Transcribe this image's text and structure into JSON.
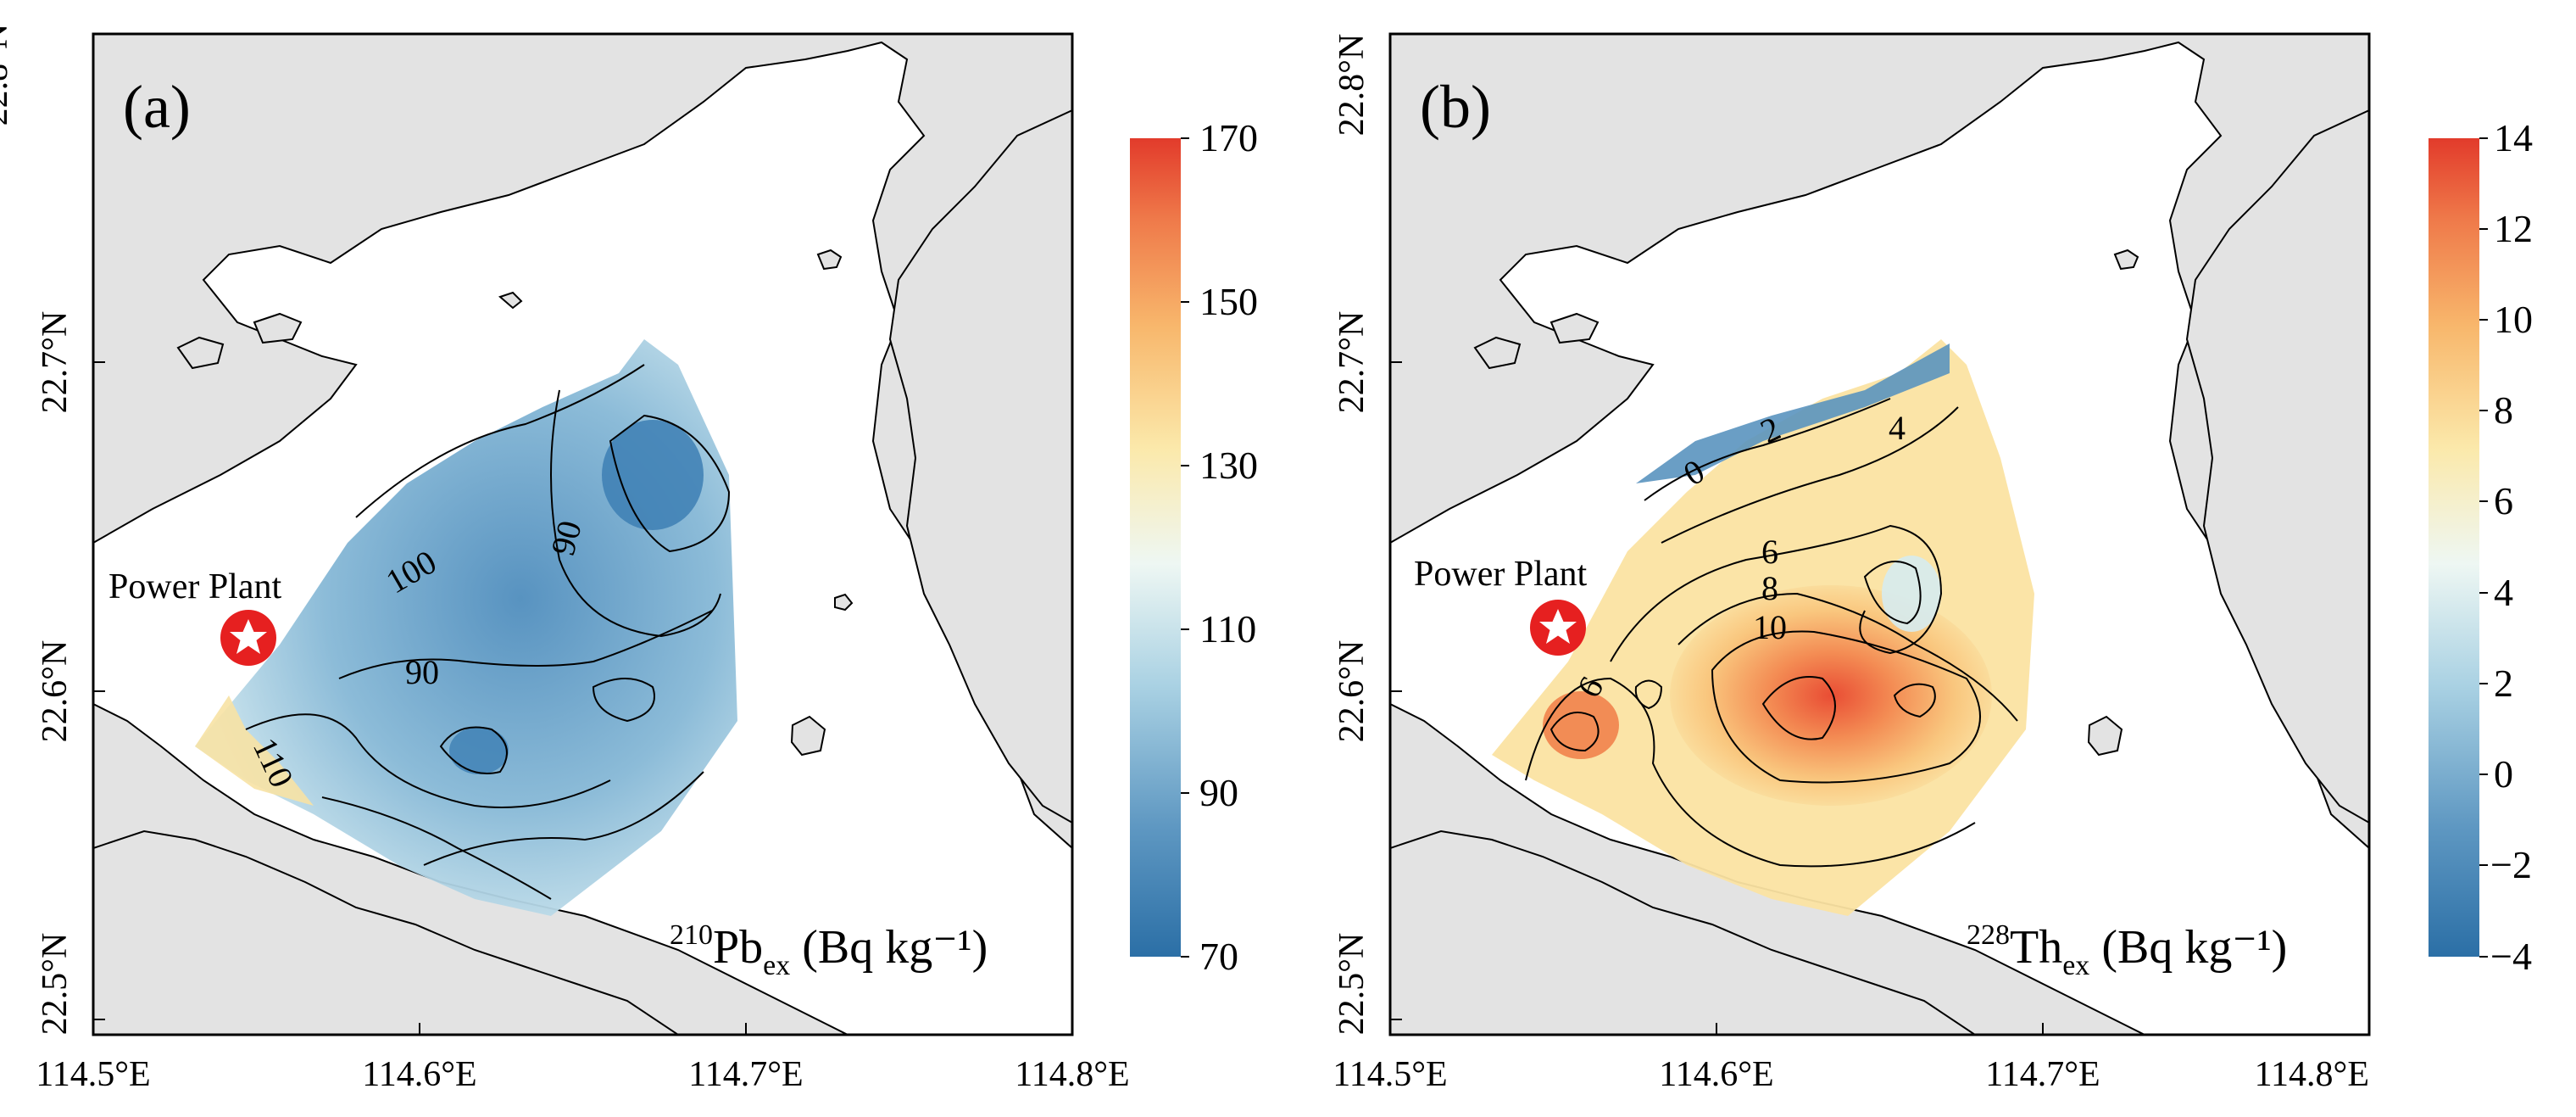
{
  "panels": [
    {
      "tag": "(a)",
      "site_label": "Power Plant",
      "var_main": "210",
      "var_sym": "Pb",
      "var_sub": "ex",
      "var_unit": "(Bq kg⁻¹)",
      "colorbar_ticks": [
        "170",
        "150",
        "130",
        "110",
        "90",
        "70"
      ],
      "contour_labels": [
        "100",
        "90",
        "90",
        "110"
      ]
    },
    {
      "tag": "(b)",
      "site_label": "Power Plant",
      "var_main": "228",
      "var_sym": "Th",
      "var_sub": "ex",
      "var_unit": "(Bq kg⁻¹)",
      "colorbar_ticks": [
        "14",
        "12",
        "10",
        "8",
        "6",
        "4",
        "2",
        "0",
        "−2",
        "−4"
      ],
      "contour_labels": [
        "0",
        "2",
        "4",
        "6",
        "8",
        "10",
        "6"
      ]
    }
  ],
  "axes": {
    "x_ticks": [
      "114.5°E",
      "114.6°E",
      "114.7°E",
      "114.8°E"
    ],
    "y_ticks": [
      "22.5°N",
      "22.6°N",
      "22.7°N",
      "22.8°N"
    ]
  },
  "colors": {
    "land": "#e3e3e3",
    "sea": "#ffffff",
    "colormap": [
      "#2b6fa6",
      "#6fa6c8",
      "#b7d8e6",
      "#eef6f2",
      "#fbe6a6",
      "#f8b46a",
      "#ef7245",
      "#e2392b"
    ],
    "marker": "#e62020"
  }
}
